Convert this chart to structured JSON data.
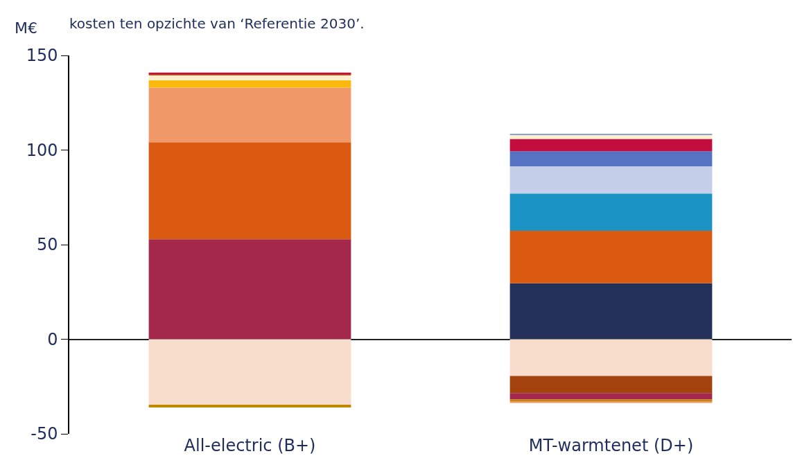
{
  "chart_data": {
    "type": "bar",
    "title": "kosten ten opzichte van ‘Referentie 2030’.",
    "ylabel": "M€",
    "categories": [
      "All-electric (B+)",
      "MT-warmtenet (D+)"
    ],
    "stacked": true,
    "ylim": [
      -50,
      150
    ],
    "yticks": [
      -50,
      0,
      50,
      100,
      150
    ],
    "series": [
      {
        "color": "#a3284b",
        "values": [
          52.8,
          null
        ]
      },
      {
        "color": "#db5a12",
        "values": [
          51.3,
          null
        ]
      },
      {
        "color": "#f2996a",
        "values": [
          28.9,
          null
        ]
      },
      {
        "color": "#fbb90f",
        "values": [
          3.8,
          null
        ]
      },
      {
        "color": "#fef0cc",
        "values": [
          2.7,
          null
        ]
      },
      {
        "color": "#b8420e",
        "values": [
          0.8,
          null
        ]
      },
      {
        "color": "#c20e3e",
        "values": [
          0.6,
          null
        ]
      },
      {
        "color": "#f8ddcc",
        "values": [
          -34.6,
          null
        ]
      },
      {
        "color": "#c08a00",
        "values": [
          -1.5,
          null
        ]
      },
      {
        "color": "#22305a",
        "values": [
          null,
          29.6
        ]
      },
      {
        "color": "#db5a12",
        "values": [
          null,
          27.7
        ]
      },
      {
        "color": "#1c93c5",
        "values": [
          null,
          19.7
        ]
      },
      {
        "color": "#c6cfea",
        "values": [
          null,
          14.4
        ]
      },
      {
        "color": "#5573c2",
        "values": [
          null,
          8.0
        ]
      },
      {
        "color": "#c20e3e",
        "values": [
          null,
          6.5
        ]
      },
      {
        "color": "#fef0cc",
        "values": [
          null,
          2.3
        ]
      },
      {
        "color": "#8aa0dc",
        "values": [
          null,
          0.4
        ]
      },
      {
        "color": "#f8ddcc",
        "values": [
          null,
          -19.4
        ]
      },
      {
        "color": "#a4420e",
        "values": [
          null,
          -9.1
        ]
      },
      {
        "color": "#a3284b",
        "values": [
          null,
          -3.4
        ]
      },
      {
        "color": "#c08a00",
        "values": [
          null,
          -1.1
        ]
      },
      {
        "color": "#f2996a",
        "values": [
          null,
          -0.7
        ]
      }
    ]
  }
}
